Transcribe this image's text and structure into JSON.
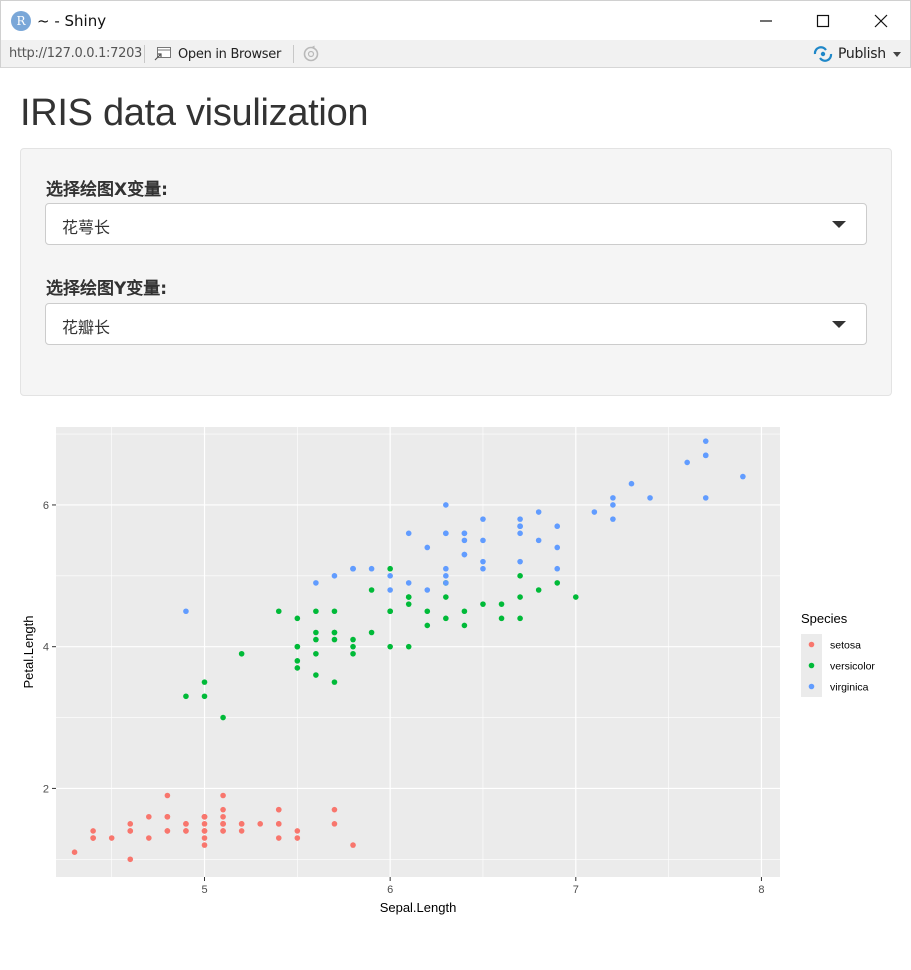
{
  "window": {
    "title": "~ - Shiny",
    "app_icon_letter": "R"
  },
  "toolbar": {
    "url": "http://127.0.0.1:7203",
    "open_in_browser": "Open in Browser",
    "publish": "Publish"
  },
  "page": {
    "title": "IRIS data visulization"
  },
  "controls": {
    "x_label": "选择绘图X变量:",
    "x_value": "花萼长",
    "y_label": "选择绘图Y变量:",
    "y_value": "花瓣长"
  },
  "colors": {
    "setosa": "#F8766D",
    "versicolor": "#00BA38",
    "virginica": "#619CFF",
    "panel_bg": "#EBEBEB",
    "grid": "#FFFFFF"
  },
  "chart_data": {
    "type": "scatter",
    "xlabel": "Sepal.Length",
    "ylabel": "Petal.Length",
    "xlim": [
      4.2,
      8.1
    ],
    "ylim": [
      0.75,
      7.1
    ],
    "x_ticks": [
      5,
      6,
      7,
      8
    ],
    "x_tick_labels": [
      "5",
      "6",
      "7",
      "8"
    ],
    "y_ticks": [
      2,
      4,
      6
    ],
    "y_tick_labels": [
      "2",
      "4",
      "6"
    ],
    "grid": true,
    "legend": {
      "title": "Species",
      "position": "right",
      "entries": [
        "setosa",
        "versicolor",
        "virginica"
      ]
    },
    "series": [
      {
        "name": "setosa",
        "points": [
          [
            5.1,
            1.4
          ],
          [
            4.9,
            1.4
          ],
          [
            4.7,
            1.3
          ],
          [
            4.6,
            1.5
          ],
          [
            5.0,
            1.4
          ],
          [
            5.4,
            1.7
          ],
          [
            4.6,
            1.4
          ],
          [
            5.0,
            1.5
          ],
          [
            4.4,
            1.4
          ],
          [
            4.9,
            1.5
          ],
          [
            5.4,
            1.5
          ],
          [
            4.8,
            1.6
          ],
          [
            4.8,
            1.4
          ],
          [
            4.3,
            1.1
          ],
          [
            5.8,
            1.2
          ],
          [
            5.7,
            1.5
          ],
          [
            5.4,
            1.3
          ],
          [
            5.1,
            1.4
          ],
          [
            5.7,
            1.7
          ],
          [
            5.1,
            1.5
          ],
          [
            5.4,
            1.7
          ],
          [
            5.1,
            1.5
          ],
          [
            4.6,
            1.0
          ],
          [
            5.1,
            1.7
          ],
          [
            4.8,
            1.9
          ],
          [
            5.0,
            1.6
          ],
          [
            5.0,
            1.6
          ],
          [
            5.2,
            1.5
          ],
          [
            5.2,
            1.4
          ],
          [
            4.7,
            1.6
          ],
          [
            4.8,
            1.6
          ],
          [
            5.4,
            1.5
          ],
          [
            5.2,
            1.5
          ],
          [
            5.5,
            1.4
          ],
          [
            4.9,
            1.5
          ],
          [
            5.0,
            1.2
          ],
          [
            5.5,
            1.3
          ],
          [
            4.9,
            1.4
          ],
          [
            4.4,
            1.3
          ],
          [
            5.1,
            1.5
          ],
          [
            5.0,
            1.3
          ],
          [
            4.5,
            1.3
          ],
          [
            4.4,
            1.3
          ],
          [
            5.0,
            1.6
          ],
          [
            5.1,
            1.9
          ],
          [
            4.8,
            1.4
          ],
          [
            5.1,
            1.6
          ],
          [
            4.6,
            1.4
          ],
          [
            5.3,
            1.5
          ],
          [
            5.0,
            1.4
          ]
        ]
      },
      {
        "name": "versicolor",
        "points": [
          [
            7.0,
            4.7
          ],
          [
            6.4,
            4.5
          ],
          [
            6.9,
            4.9
          ],
          [
            5.5,
            4.0
          ],
          [
            6.5,
            4.6
          ],
          [
            5.7,
            4.5
          ],
          [
            6.3,
            4.7
          ],
          [
            4.9,
            3.3
          ],
          [
            6.6,
            4.6
          ],
          [
            5.2,
            3.9
          ],
          [
            5.0,
            3.5
          ],
          [
            5.9,
            4.2
          ],
          [
            6.0,
            4.0
          ],
          [
            6.1,
            4.7
          ],
          [
            5.6,
            3.6
          ],
          [
            6.7,
            4.4
          ],
          [
            5.6,
            4.5
          ],
          [
            5.8,
            4.1
          ],
          [
            6.2,
            4.5
          ],
          [
            5.6,
            3.9
          ],
          [
            5.9,
            4.8
          ],
          [
            6.1,
            4.0
          ],
          [
            6.3,
            4.9
          ],
          [
            6.1,
            4.7
          ],
          [
            6.4,
            4.3
          ],
          [
            6.6,
            4.4
          ],
          [
            6.8,
            4.8
          ],
          [
            6.7,
            5.0
          ],
          [
            6.0,
            4.5
          ],
          [
            5.7,
            3.5
          ],
          [
            5.5,
            3.8
          ],
          [
            5.5,
            3.7
          ],
          [
            5.8,
            3.9
          ],
          [
            6.0,
            5.1
          ],
          [
            5.4,
            4.5
          ],
          [
            6.0,
            4.5
          ],
          [
            6.7,
            4.7
          ],
          [
            6.3,
            4.4
          ],
          [
            5.6,
            4.1
          ],
          [
            5.5,
            4.0
          ],
          [
            5.5,
            4.4
          ],
          [
            6.1,
            4.6
          ],
          [
            5.8,
            4.0
          ],
          [
            5.0,
            3.3
          ],
          [
            5.6,
            4.2
          ],
          [
            5.7,
            4.2
          ],
          [
            5.7,
            4.2
          ],
          [
            6.2,
            4.3
          ],
          [
            5.1,
            3.0
          ],
          [
            5.7,
            4.1
          ]
        ]
      },
      {
        "name": "virginica",
        "points": [
          [
            6.3,
            6.0
          ],
          [
            5.8,
            5.1
          ],
          [
            7.1,
            5.9
          ],
          [
            6.3,
            5.6
          ],
          [
            6.5,
            5.8
          ],
          [
            7.6,
            6.6
          ],
          [
            4.9,
            4.5
          ],
          [
            7.3,
            6.3
          ],
          [
            6.7,
            5.8
          ],
          [
            7.2,
            6.1
          ],
          [
            6.5,
            5.1
          ],
          [
            6.4,
            5.3
          ],
          [
            6.8,
            5.5
          ],
          [
            5.7,
            5.0
          ],
          [
            5.8,
            5.1
          ],
          [
            6.4,
            5.3
          ],
          [
            6.5,
            5.5
          ],
          [
            7.7,
            6.7
          ],
          [
            7.7,
            6.9
          ],
          [
            6.0,
            5.0
          ],
          [
            6.9,
            5.7
          ],
          [
            5.6,
            4.9
          ],
          [
            7.7,
            6.7
          ],
          [
            6.3,
            4.9
          ],
          [
            6.7,
            5.7
          ],
          [
            7.2,
            6.0
          ],
          [
            6.2,
            4.8
          ],
          [
            6.1,
            4.9
          ],
          [
            6.4,
            5.6
          ],
          [
            7.2,
            5.8
          ],
          [
            7.4,
            6.1
          ],
          [
            7.9,
            6.4
          ],
          [
            6.4,
            5.6
          ],
          [
            6.3,
            5.1
          ],
          [
            6.1,
            5.6
          ],
          [
            7.7,
            6.1
          ],
          [
            6.3,
            5.6
          ],
          [
            6.4,
            5.5
          ],
          [
            6.0,
            4.8
          ],
          [
            6.9,
            5.4
          ],
          [
            6.7,
            5.6
          ],
          [
            6.9,
            5.1
          ],
          [
            5.8,
            5.1
          ],
          [
            6.8,
            5.9
          ],
          [
            6.7,
            5.7
          ],
          [
            6.7,
            5.2
          ],
          [
            6.3,
            5.0
          ],
          [
            6.5,
            5.2
          ],
          [
            6.2,
            5.4
          ],
          [
            5.9,
            5.1
          ]
        ]
      }
    ]
  }
}
